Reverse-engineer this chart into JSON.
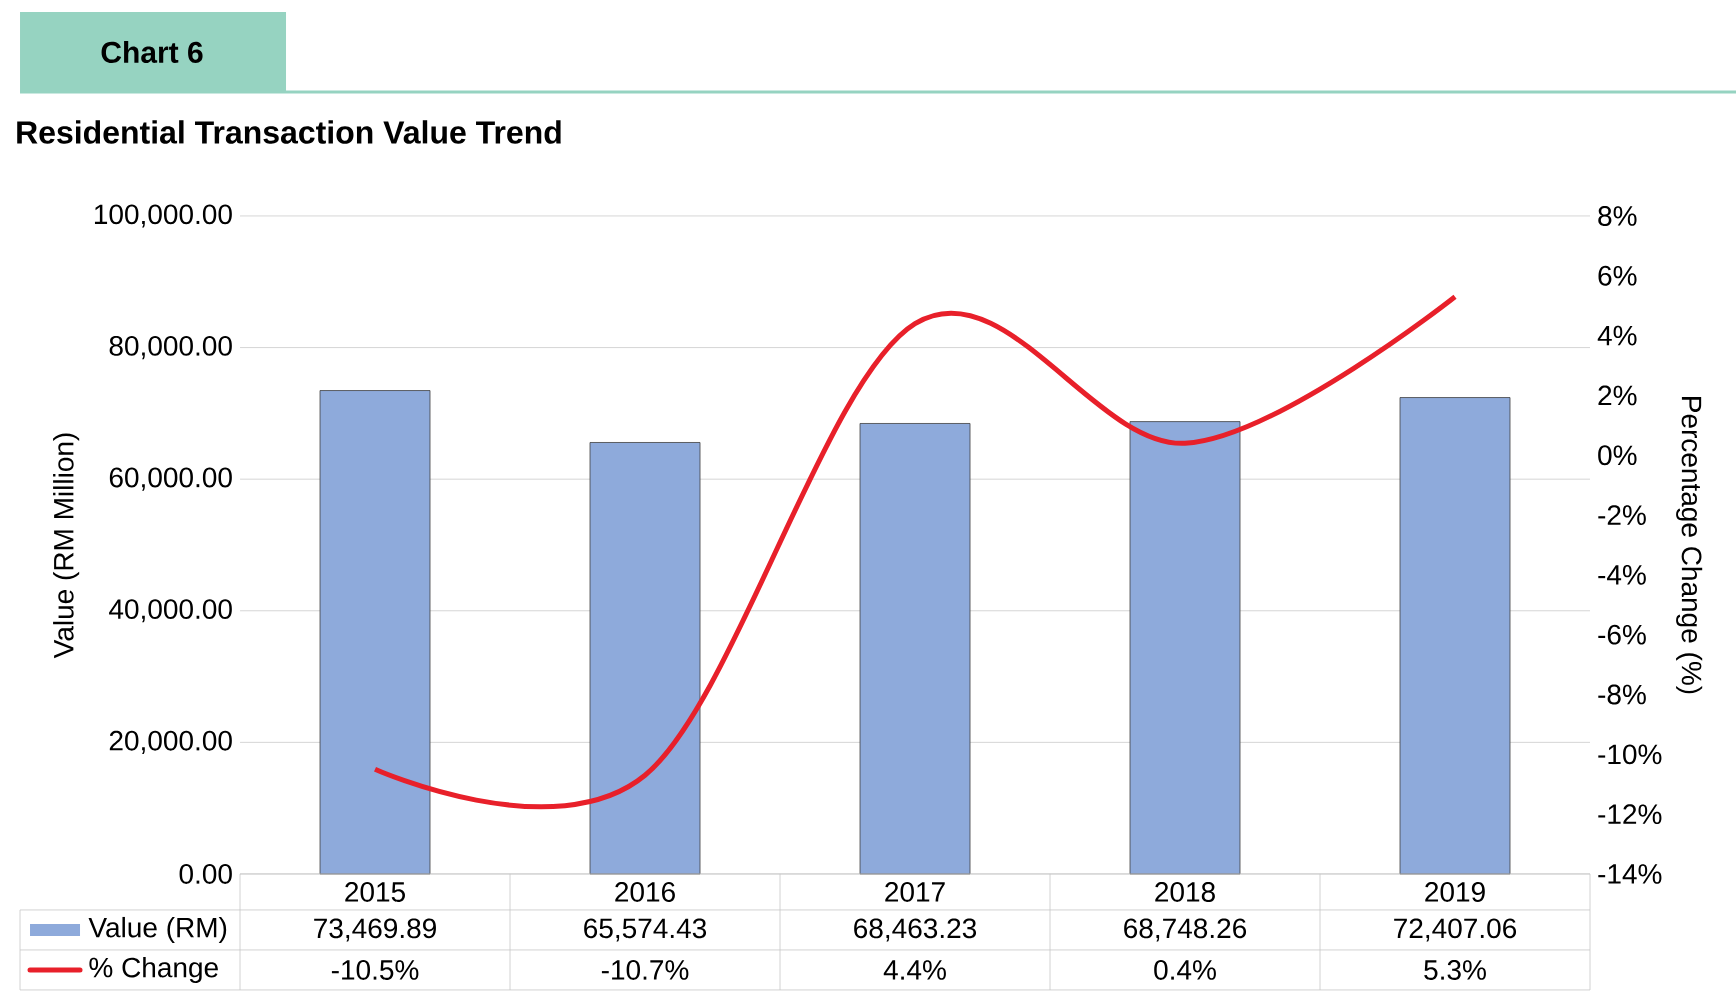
{
  "chart_data": {
    "type": "bar",
    "title": "Chart 6",
    "subtitle": "Residential Transaction Value Trend",
    "ylabel": "Value (RM Million)",
    "y2label": "Percentage Change (%)",
    "categories": [
      "2015",
      "2016",
      "2017",
      "2018",
      "2019"
    ],
    "series": [
      {
        "name": "Value (RM)",
        "color": "#8eaadb",
        "values": [
          73469.89,
          65574.43,
          68463.23,
          68748.26,
          72407.06
        ],
        "value_labels": [
          "73,469.89",
          "65,574.43",
          "68,463.23",
          "68,748.26",
          "72,407.06"
        ]
      },
      {
        "name": "% Change",
        "type": "line",
        "axis": "y2",
        "color": "#e8202a",
        "values": [
          -10.5,
          -10.7,
          4.4,
          0.4,
          5.3
        ],
        "value_labels": [
          "-10.5%",
          "-10.7%",
          "4.4%",
          "0.4%",
          "5.3%"
        ]
      }
    ],
    "ylim": [
      0,
      100000
    ],
    "yticks": [
      {
        "value": 0,
        "label": "0.00"
      },
      {
        "value": 20000,
        "label": "20,000.00"
      },
      {
        "value": 40000,
        "label": "40,000.00"
      },
      {
        "value": 60000,
        "label": "60,000.00"
      },
      {
        "value": 80000,
        "label": "80,000.00"
      },
      {
        "value": 100000,
        "label": "100,000.00"
      }
    ],
    "y2lim": [
      -14,
      8
    ],
    "y2ticks": [
      {
        "value": -14,
        "label": "-14%"
      },
      {
        "value": -12,
        "label": "-12%"
      },
      {
        "value": -10,
        "label": "-10%"
      },
      {
        "value": -8,
        "label": "-8%"
      },
      {
        "value": -6,
        "label": "-6%"
      },
      {
        "value": -4,
        "label": "-4%"
      },
      {
        "value": -2,
        "label": "-2%"
      },
      {
        "value": 0,
        "label": "0%"
      },
      {
        "value": 2,
        "label": "2%"
      },
      {
        "value": 4,
        "label": "4%"
      },
      {
        "value": 6,
        "label": "6%"
      },
      {
        "value": 8,
        "label": "8%"
      }
    ],
    "grid": "y",
    "legend": "bottom"
  }
}
